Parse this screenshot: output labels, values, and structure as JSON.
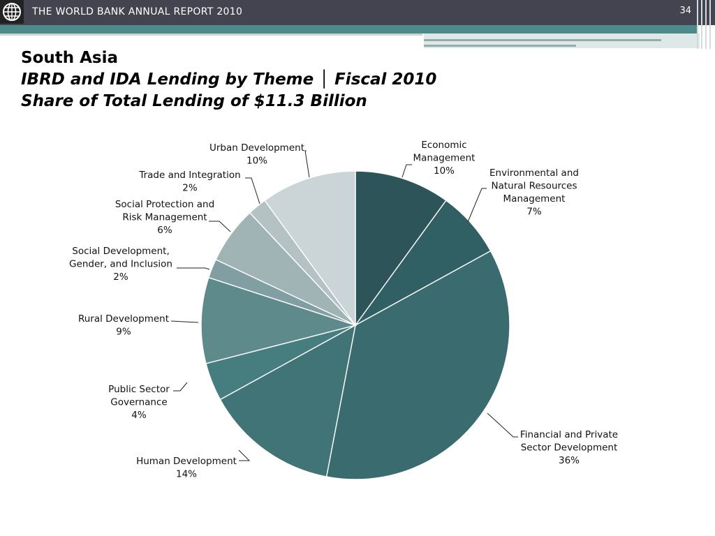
{
  "header": {
    "title": "THE WORLD BANK ANNUAL REPORT 2010",
    "page_number": "34",
    "logo_icon": "globe-logo-icon"
  },
  "titles": {
    "region": "South Asia",
    "line2": "IBRD and IDA Lending by Theme │ Fiscal 2010",
    "line3": "Share of Total Lending of $11.3 Billion"
  },
  "colors": {
    "header_bg": "#43444f",
    "accent_teal": "#4f8a8b"
  },
  "chart_data": {
    "type": "pie",
    "title": "Share of Total Lending of $11.3 Billion",
    "start_angle_deg": 0,
    "direction": "clockwise",
    "slices": [
      {
        "lines": [
          "Economic",
          "Management",
          "10%"
        ],
        "label": "Economic Management",
        "value": 10,
        "color": "#2d5559"
      },
      {
        "lines": [
          "Environmental and",
          "Natural Resources",
          "Management",
          "7%"
        ],
        "label": "Environmental and Natural Resources Management",
        "value": 7,
        "color": "#306064"
      },
      {
        "lines": [
          "Financial and Private",
          "Sector Development",
          "36%"
        ],
        "label": "Financial and Private Sector Development",
        "value": 36,
        "color": "#3a6b6f"
      },
      {
        "lines": [
          "Human Development",
          "14%"
        ],
        "label": "Human Development",
        "value": 14,
        "color": "#407477"
      },
      {
        "lines": [
          "Public Sector",
          "Governance",
          "4%"
        ],
        "label": "Public Sector Governance",
        "value": 4,
        "color": "#467e80"
      },
      {
        "lines": [
          "Rural Development",
          "9%"
        ],
        "label": "Rural Development",
        "value": 9,
        "color": "#5e8a8c"
      },
      {
        "lines": [
          "Social Development,",
          "Gender, and Inclusion",
          "2%"
        ],
        "label": "Social Development, Gender, and Inclusion",
        "value": 2,
        "color": "#819fa2"
      },
      {
        "lines": [
          "Social Protection and",
          "Risk Management",
          "6%"
        ],
        "label": "Social Protection and Risk Management",
        "value": 6,
        "color": "#a0b4b6"
      },
      {
        "lines": [
          "Trade and Integration",
          "2%"
        ],
        "label": "Trade and Integration",
        "value": 2,
        "color": "#b4c2c4"
      },
      {
        "lines": [
          "Urban Development",
          "10%"
        ],
        "label": "Urban Development",
        "value": 10,
        "color": "#cbd4d6"
      }
    ]
  }
}
